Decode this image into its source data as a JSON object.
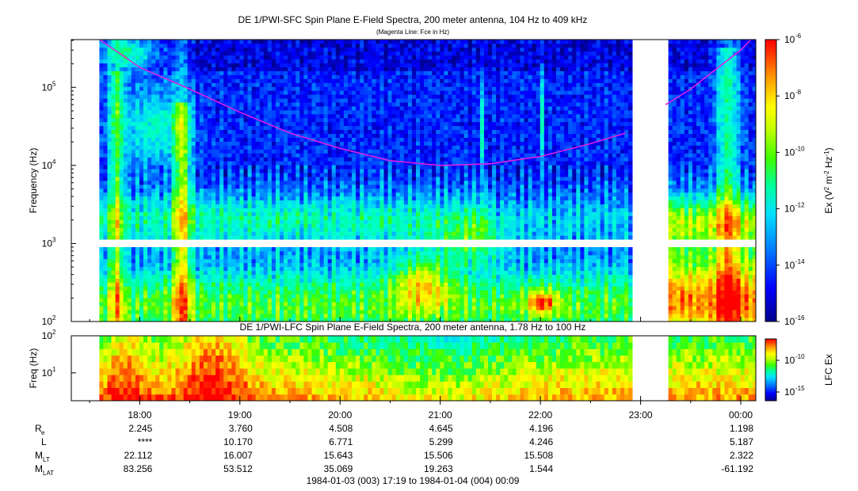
{
  "chart_data": [
    {
      "type": "heatmap",
      "title": "DE 1/PWI-SFC  Spin Plane E-Field Spectra, 200 meter antenna, 104 Hz to 409 kHz",
      "subtitle": "(Magenta Line: Fce in Hz)",
      "ylabel": "Frequency (Hz)",
      "yscale": "log",
      "ylim": [
        100,
        409000
      ],
      "y_tick_labels": [
        "10",
        "10",
        "10",
        "10"
      ],
      "y_tick_exponents": [
        "2",
        "3",
        "4",
        "5"
      ],
      "y_tick_values": [
        100,
        1000,
        10000,
        100000
      ],
      "x_tick_labels": [
        "18:00",
        "19:00",
        "20:00",
        "21:00",
        "22:00",
        "23:00",
        "00:00"
      ],
      "x_tick_hours": [
        18,
        19,
        20,
        21,
        22,
        23,
        24
      ],
      "xlim_hours": [
        17.317,
        24.15
      ],
      "colorbar": {
        "label": "Ex (V",
        "label_parts": [
          "Ex (V",
          "2",
          " m",
          "-2",
          " Hz",
          "-1",
          ")"
        ],
        "scale": "log",
        "range": [
          1e-16,
          1e-06
        ],
        "tick_labels": [
          "10",
          "10",
          "10",
          "10",
          "10",
          "10"
        ],
        "tick_exponents": [
          "-6",
          "-8",
          "-10",
          "-12",
          "-14",
          "-16"
        ]
      },
      "data_gaps_hours": [
        [
          17.317,
          17.59
        ],
        [
          22.9,
          23.25
        ],
        [
          24.13,
          24.15
        ]
      ],
      "overlay_line": {
        "name": "Fce",
        "color": "#dd22dd",
        "segments": [
          {
            "hours": [
              17.6,
              18.0,
              18.5,
              19.0,
              19.5,
              20.0,
              20.5,
              21.0,
              21.5,
              22.0,
              22.5,
              22.85
            ],
            "hz": [
              409000,
              180000,
              95000,
              48000,
              26000,
              16500,
              11500,
              10000,
              10500,
              13000,
              19000,
              26000
            ]
          },
          {
            "hours": [
              23.25,
              23.5,
              23.75,
              24.0,
              24.1
            ],
            "hz": [
              60000,
              95000,
              170000,
              300000,
              409000
            ]
          }
        ]
      }
    },
    {
      "type": "heatmap",
      "title": "DE 1/PWI-LFC  Spin Plane E-Field Spectra, 200 meter antenna, 1.78 Hz to 100 Hz",
      "ylabel": "Freq (Hz)",
      "yscale": "log",
      "ylim": [
        1.78,
        100
      ],
      "y_tick_labels": [
        "10",
        "10"
      ],
      "y_tick_exponents": [
        "1",
        "2"
      ],
      "colorbar": {
        "label": "LFC Ex",
        "scale": "log",
        "tick_labels": [
          "10",
          "10"
        ],
        "tick_exponents": [
          "-10",
          "-15"
        ]
      },
      "data_gaps_hours": [
        [
          17.317,
          17.59
        ],
        [
          22.9,
          23.25
        ],
        [
          24.13,
          24.15
        ]
      ]
    }
  ],
  "ephemeris": {
    "rows": [
      {
        "label": "R",
        "sub": "e",
        "values": [
          "2.245",
          "3.760",
          "4.508",
          "4.645",
          "4.196",
          "",
          "1.198"
        ]
      },
      {
        "label": "L",
        "sub": "",
        "values": [
          "****",
          "10.170",
          "6.771",
          "5.299",
          "4.246",
          "",
          "5.187"
        ]
      },
      {
        "label": "M",
        "sub": "LT",
        "values": [
          "22.112",
          "16.007",
          "15.643",
          "15.506",
          "15.508",
          "",
          "2.322"
        ]
      },
      {
        "label": "M",
        "sub": "LAT",
        "values": [
          "83.256",
          "53.512",
          "35.069",
          "19.263",
          "1.544",
          "",
          "-61.192"
        ]
      }
    ]
  },
  "time_range": "1984-01-03 (003) 17:19 to 1984-01-04 (004) 00:09",
  "colors": {
    "colormap": [
      "#00008c",
      "#0000ff",
      "#0064ff",
      "#00c8ff",
      "#00ffd8",
      "#00ff96",
      "#3cff00",
      "#b4ff00",
      "#ffff00",
      "#ffb400",
      "#ff6400",
      "#ff0000"
    ],
    "fce_line": "#dd22dd"
  }
}
